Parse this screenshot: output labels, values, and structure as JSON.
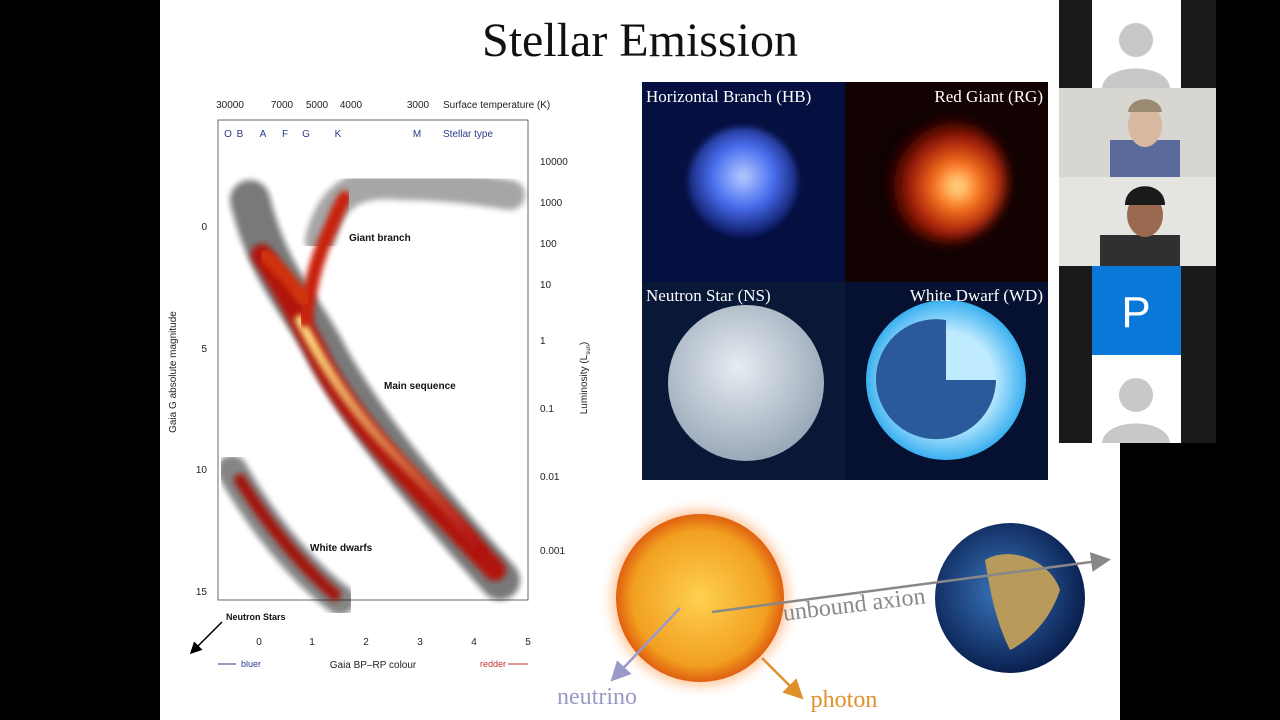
{
  "slide": {
    "title": "Stellar Emission",
    "hr_diagram": {
      "temperature_ticks": [
        "30000",
        "7000",
        "5000",
        "4000",
        "3000"
      ],
      "temperature_label": "Surface temperature (K)",
      "stellar_types": [
        "O",
        "B",
        "A",
        "F",
        "G",
        "K",
        "M"
      ],
      "stellar_type_label": "Stellar type",
      "magnitude_ticks": [
        "0",
        "5",
        "10",
        "15"
      ],
      "magnitude_label": "Gaia G absolute magnitude",
      "luminosity_ticks": [
        "10000",
        "1000",
        "100",
        "10",
        "1",
        "0.1",
        "0.01",
        "0.001"
      ],
      "luminosity_label": {
        "main": "Luminosity (L",
        "sub": "sun",
        "end": ")"
      },
      "colour_ticks": [
        "0",
        "1",
        "2",
        "3",
        "4",
        "5"
      ],
      "colour_label": "Gaia BP–RP colour",
      "bluer": "bluer",
      "redder": "redder",
      "annotations": [
        "Giant branch",
        "Main sequence",
        "White dwarfs",
        "Neutron Stars"
      ]
    },
    "panels": [
      "Horizontal Branch (HB)",
      "Red Giant (RG)",
      "Neutron Star (NS)",
      "White Dwarf (WD)"
    ],
    "diagram_labels": {
      "axion": "unbound axion",
      "neutrino": "neutrino",
      "photon": "photon"
    }
  },
  "participants": {
    "tile_initial": "P"
  }
}
